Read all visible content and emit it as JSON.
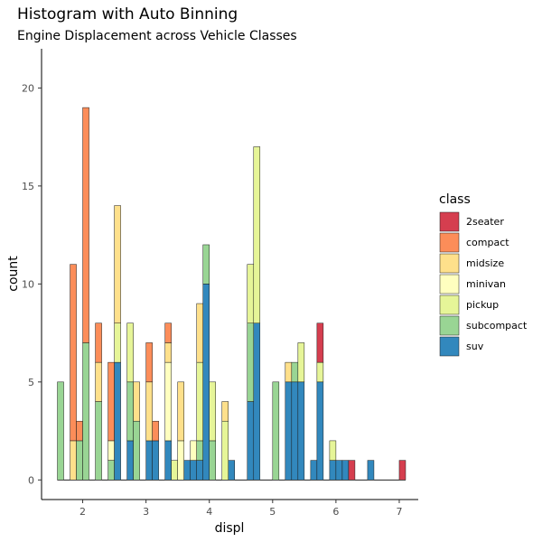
{
  "chart_data": {
    "type": "bar",
    "stacked": true,
    "title": "Histogram with Auto Binning",
    "subtitle": "Engine Displacement across Vehicle Classes",
    "xlabel": "displ",
    "ylabel": "count",
    "xlim": [
      1.35,
      7.3
    ],
    "ylim": [
      -1,
      22
    ],
    "xticks": [
      "2",
      "3",
      "4",
      "5",
      "6",
      "7"
    ],
    "yticks": [
      "0",
      "5",
      "10",
      "15",
      "20"
    ],
    "bin_width": 0.1,
    "bin_starts": [
      1.6,
      1.8,
      1.9,
      2.0,
      2.1,
      2.2,
      2.4,
      2.5,
      2.7,
      2.8,
      3.0,
      3.1,
      3.3,
      3.4,
      3.5,
      3.6,
      3.7,
      3.8,
      3.9,
      4.0,
      4.2,
      4.3,
      4.6,
      4.7,
      5.0,
      5.2,
      5.3,
      5.4,
      5.6,
      5.7,
      5.9,
      6.0,
      6.1,
      6.2,
      6.5,
      7.0
    ],
    "legend_title": "class",
    "legend_position": "right",
    "series": [
      {
        "name": "2seater",
        "color": "#D53E4F",
        "values": [
          0,
          0,
          0,
          0,
          0,
          0,
          0,
          0,
          0,
          0,
          0,
          0,
          0,
          0,
          0,
          0,
          0,
          0,
          0,
          0,
          0,
          0,
          0,
          0,
          0,
          0,
          0,
          0,
          0,
          2,
          0,
          0,
          0,
          1,
          0,
          1
        ]
      },
      {
        "name": "compact",
        "color": "#FC8D59",
        "values": [
          0,
          9,
          1,
          12,
          0,
          2,
          4,
          0,
          0,
          0,
          2,
          1,
          1,
          0,
          0,
          0,
          0,
          0,
          0,
          0,
          0,
          0,
          0,
          0,
          0,
          0,
          0,
          0,
          0,
          0,
          0,
          0,
          0,
          0,
          0,
          0
        ]
      },
      {
        "name": "midsize",
        "color": "#FEE08B",
        "values": [
          0,
          2,
          0,
          0,
          0,
          2,
          0,
          6,
          0,
          2,
          3,
          0,
          1,
          0,
          3,
          0,
          0,
          3,
          0,
          0,
          1,
          0,
          0,
          0,
          0,
          1,
          0,
          0,
          0,
          0,
          0,
          0,
          0,
          0,
          0,
          0
        ]
      },
      {
        "name": "minivan",
        "color": "#FFFFBF",
        "values": [
          0,
          0,
          0,
          0,
          0,
          0,
          1,
          0,
          0,
          0,
          0,
          0,
          4,
          0,
          2,
          0,
          1,
          0,
          0,
          0,
          0,
          0,
          0,
          0,
          0,
          0,
          0,
          0,
          0,
          0,
          0,
          0,
          0,
          0,
          0,
          0
        ]
      },
      {
        "name": "pickup",
        "color": "#E6F598",
        "values": [
          0,
          0,
          0,
          0,
          0,
          0,
          0,
          2,
          3,
          0,
          0,
          0,
          0,
          1,
          0,
          0,
          0,
          4,
          0,
          3,
          3,
          0,
          3,
          9,
          0,
          0,
          0,
          2,
          0,
          1,
          1,
          0,
          0,
          0,
          0,
          0
        ]
      },
      {
        "name": "subcompact",
        "color": "#99D594",
        "values": [
          5,
          0,
          2,
          7,
          0,
          4,
          1,
          0,
          3,
          3,
          0,
          0,
          0,
          0,
          0,
          0,
          0,
          1,
          2,
          2,
          0,
          0,
          4,
          0,
          5,
          0,
          1,
          0,
          0,
          0,
          0,
          0,
          0,
          0,
          0,
          0
        ]
      },
      {
        "name": "suv",
        "color": "#3288BD",
        "values": [
          0,
          0,
          0,
          0,
          0,
          0,
          0,
          6,
          2,
          0,
          2,
          2,
          2,
          0,
          0,
          1,
          1,
          1,
          10,
          0,
          0,
          1,
          4,
          8,
          0,
          5,
          5,
          5,
          1,
          5,
          1,
          1,
          1,
          0,
          1,
          0
        ]
      }
    ]
  }
}
